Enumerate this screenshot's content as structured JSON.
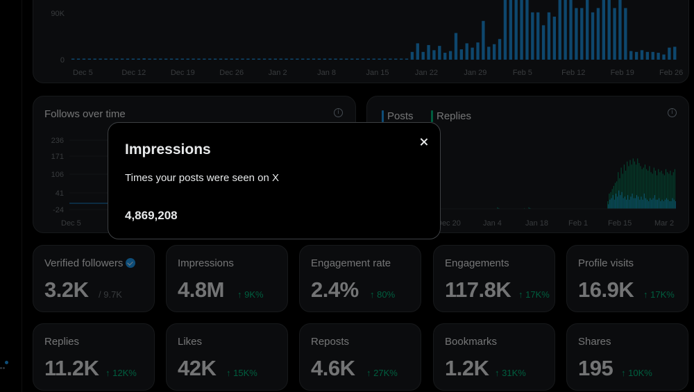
{
  "impressions_chart": {
    "y_ticks": [
      "0",
      "90K"
    ],
    "x_labels": [
      "Dec 5",
      "Dec 12",
      "Dec 19",
      "Dec 26",
      "Jan 2",
      "Jan 8",
      "Jan 15",
      "Jan 22",
      "Jan 29",
      "Feb 5",
      "Feb 12",
      "Feb 19",
      "Feb 26"
    ],
    "bar_color": "#1d9bf0",
    "values": [
      1,
      1,
      1,
      1,
      2,
      1,
      1,
      1,
      1,
      1,
      1,
      1,
      2,
      3,
      1,
      1,
      1,
      1,
      1,
      2,
      1,
      2,
      1,
      1,
      1,
      1,
      1,
      1,
      1,
      1,
      1,
      1,
      1,
      1,
      1,
      1,
      1,
      1,
      1,
      1,
      1,
      1,
      1,
      1,
      1,
      1,
      1,
      1,
      1,
      1,
      1,
      1,
      1,
      1,
      1,
      1,
      1,
      1,
      1,
      1,
      1,
      1,
      18,
      38,
      18,
      34,
      22,
      32,
      16,
      20,
      62,
      24,
      38,
      28,
      40,
      90,
      30,
      36,
      48,
      140,
      260,
      200,
      200,
      210,
      110,
      110,
      80,
      110,
      100,
      160,
      145,
      280,
      120,
      120,
      180,
      110,
      120,
      160,
      200,
      120,
      140,
      120,
      20,
      18,
      22,
      18,
      18,
      16,
      12,
      28,
      30
    ]
  },
  "follows_card": {
    "title": "Follows over time",
    "y_ticks": [
      "-24",
      "41",
      "106",
      "171",
      "236"
    ],
    "x_labels": [
      "Dec 5"
    ]
  },
  "posts_card": {
    "legend": [
      {
        "label": "Posts",
        "color": "#1d9bf0"
      },
      {
        "label": "Replies",
        "color": "#00ba7c"
      }
    ],
    "x_labels": [
      "Dec 20",
      "Jan 4",
      "Jan 18",
      "Feb 1",
      "Feb 15",
      "Mar 2"
    ],
    "posts": [
      0,
      0,
      0,
      0,
      0,
      0,
      0,
      0,
      0,
      0,
      0,
      0,
      0,
      0,
      0,
      0,
      0,
      0,
      0,
      0,
      0,
      0,
      0,
      0,
      0,
      0,
      0,
      0,
      0,
      0,
      0,
      0,
      0,
      0,
      0,
      0,
      0,
      0,
      0,
      0,
      0,
      0,
      0,
      1,
      0,
      0,
      0,
      0,
      0,
      0,
      0,
      0,
      0,
      0,
      0,
      0,
      0,
      0,
      0,
      0,
      0,
      0,
      0,
      0,
      1,
      0,
      0,
      0,
      0,
      0,
      0,
      0,
      0,
      0,
      0,
      0,
      0,
      0,
      0,
      0,
      0,
      0,
      0,
      0,
      0,
      0,
      0,
      0,
      0,
      0,
      0,
      0,
      0,
      0,
      0,
      0,
      0,
      0,
      0,
      0,
      0,
      0,
      0,
      0,
      0,
      0,
      0,
      0,
      0,
      0,
      0,
      0,
      0,
      0,
      0,
      0,
      0,
      6,
      12,
      14,
      18,
      12,
      20,
      16,
      24,
      18,
      22,
      14,
      16,
      12,
      18,
      12,
      16,
      20,
      14,
      14,
      18,
      16,
      12,
      16,
      12,
      20,
      14,
      12,
      10,
      14,
      12,
      14,
      18,
      12,
      12,
      14,
      10,
      12,
      10,
      12,
      14,
      12,
      10,
      10,
      14,
      12,
      10
    ],
    "replies": [
      0,
      0,
      0,
      0,
      0,
      0,
      0,
      0,
      0,
      0,
      0,
      0,
      0,
      0,
      0,
      0,
      0,
      0,
      0,
      0,
      0,
      0,
      0,
      0,
      0,
      0,
      0,
      0,
      0,
      0,
      0,
      0,
      0,
      0,
      0,
      0,
      0,
      0,
      0,
      0,
      0,
      0,
      0,
      2,
      1,
      0,
      0,
      0,
      0,
      0,
      0,
      0,
      0,
      0,
      0,
      0,
      0,
      0,
      0,
      0,
      0,
      1,
      0,
      0,
      2,
      1,
      0,
      0,
      0,
      0,
      0,
      0,
      0,
      0,
      0,
      0,
      0,
      0,
      0,
      0,
      0,
      0,
      0,
      0,
      0,
      0,
      0,
      0,
      0,
      0,
      0,
      0,
      0,
      0,
      0,
      0,
      0,
      0,
      0,
      0,
      0,
      0,
      0,
      0,
      0,
      0,
      0,
      0,
      0,
      0,
      0,
      0,
      0,
      0,
      0,
      0,
      0,
      10,
      20,
      22,
      26,
      30,
      34,
      36,
      48,
      40,
      54,
      46,
      58,
      50,
      62,
      56,
      64,
      58,
      66,
      62,
      58,
      66,
      60,
      56,
      52,
      54,
      58,
      52,
      50,
      56,
      48,
      46,
      54,
      50,
      44,
      52,
      48,
      50,
      46,
      44,
      52,
      48,
      46,
      50,
      44,
      48,
      52
    ]
  },
  "metrics_row1": [
    {
      "label": "Verified followers",
      "value": "3.2K",
      "sub": "/ 9.7K",
      "delta": ""
    },
    {
      "label": "Impressions",
      "value": "4.8M",
      "sub": "",
      "delta": "↑ 9K%"
    },
    {
      "label": "Engagement rate",
      "value": "2.4%",
      "sub": "",
      "delta": "↑ 80%"
    },
    {
      "label": "Engagements",
      "value": "117.8K",
      "sub": "",
      "delta": "↑ 17K%"
    },
    {
      "label": "Profile visits",
      "value": "16.9K",
      "sub": "",
      "delta": "↑ 17K%"
    }
  ],
  "metrics_row2": [
    {
      "label": "Replies",
      "value": "11.2K",
      "delta": "↑ 12K%"
    },
    {
      "label": "Likes",
      "value": "42K",
      "delta": "↑ 15K%"
    },
    {
      "label": "Reposts",
      "value": "4.6K",
      "delta": "↑ 27K%"
    },
    {
      "label": "Bookmarks",
      "value": "1.2K",
      "delta": "↑ 31K%"
    },
    {
      "label": "Shares",
      "value": "195",
      "delta": "↑ 10K%"
    }
  ],
  "dialog": {
    "title": "Impressions",
    "description": "Times your posts were seen on X",
    "value": "4,869,208"
  },
  "icons": [
    "info-icon",
    "verified-badge-icon",
    "close-icon"
  ]
}
